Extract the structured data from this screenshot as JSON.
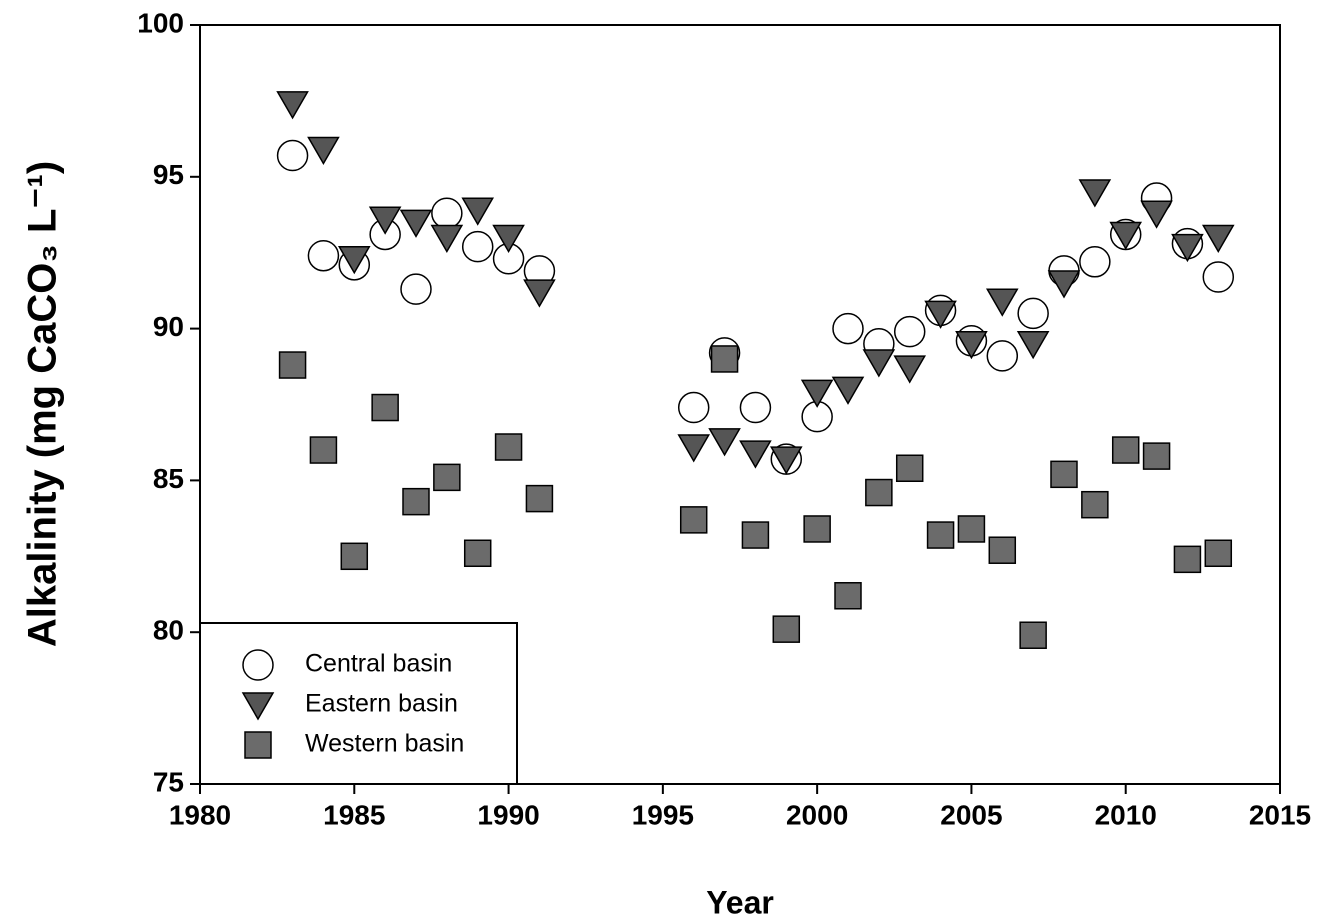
{
  "chart_data": {
    "type": "scatter",
    "x_label": "Year",
    "y_label": "Alkalinity (mg CaCO₃ L⁻¹)",
    "x": [
      1983,
      1984,
      1985,
      1986,
      1987,
      1988,
      1989,
      1990,
      1991,
      1996,
      1997,
      1998,
      1999,
      2000,
      2001,
      2002,
      2003,
      2004,
      2005,
      2006,
      2007,
      2008,
      2009,
      2010,
      2011,
      2012,
      2013
    ],
    "series": [
      {
        "name": "Central basin",
        "marker": "circle",
        "color": "#ffffff",
        "values": [
          95.7,
          92.4,
          92.1,
          93.1,
          91.3,
          93.8,
          92.7,
          92.3,
          91.9,
          87.4,
          89.2,
          87.4,
          85.7,
          87.1,
          90.0,
          89.5,
          89.9,
          90.6,
          89.6,
          89.1,
          90.5,
          91.9,
          92.2,
          93.1,
          94.3,
          92.8,
          91.7
        ]
      },
      {
        "name": "Eastern basin",
        "marker": "triangle-down",
        "color": "#555555",
        "values": [
          97.4,
          95.9,
          92.3,
          93.6,
          93.5,
          93.0,
          93.9,
          93.0,
          91.2,
          86.1,
          86.3,
          85.9,
          85.7,
          87.9,
          88.0,
          88.9,
          88.7,
          90.5,
          89.5,
          90.9,
          89.5,
          91.5,
          94.5,
          93.1,
          93.8,
          92.7,
          93.0
        ]
      },
      {
        "name": "Western basin",
        "marker": "square",
        "color": "#6b6b6b",
        "values": [
          88.8,
          86.0,
          82.5,
          87.4,
          84.3,
          85.1,
          82.6,
          86.1,
          84.4,
          83.7,
          89.0,
          83.2,
          80.1,
          83.4,
          81.2,
          84.6,
          85.4,
          83.2,
          83.4,
          82.7,
          79.9,
          85.2,
          84.2,
          86.0,
          85.8,
          82.4,
          82.6
        ]
      }
    ],
    "xlim": [
      1980,
      2015
    ],
    "xticks": [
      1980,
      1985,
      1990,
      1995,
      2000,
      2005,
      2010,
      2015
    ],
    "ylim": [
      75,
      100
    ],
    "yticks": [
      75,
      80,
      85,
      90,
      95,
      100
    ],
    "legend": "lower left",
    "grid": false
  }
}
